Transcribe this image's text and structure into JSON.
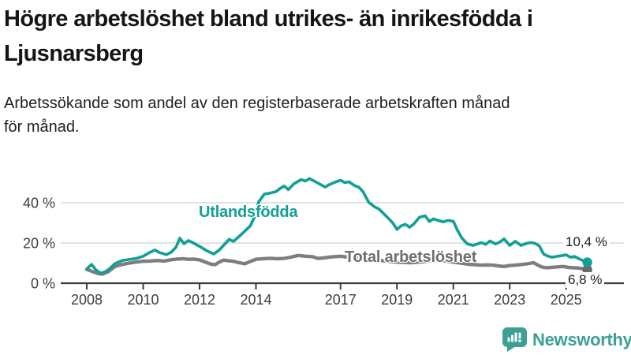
{
  "chart_data": {
    "type": "line",
    "title": "Högre arbetslöshet bland utrikes- än inrikesfödda i\nLjusnarsberg",
    "subtitle": "Arbetssökande som andel av den registerbaserade arbetskraften månad\nför månad.",
    "xlabel": "",
    "ylabel": "",
    "grid": "horizontal",
    "legend": "inline-labels",
    "x_axis": {
      "ticks": [
        2008,
        2010,
        2012,
        2014,
        2017,
        2019,
        2021,
        2023,
        2025
      ],
      "range": [
        2007.1,
        2027.0
      ]
    },
    "y_axis": {
      "unit": "%",
      "range": [
        0,
        58.5
      ],
      "ticks": [
        {
          "label": "0 %",
          "value": 0
        },
        {
          "label": "20 %",
          "value": 20
        },
        {
          "label": "40 %",
          "value": 40
        }
      ]
    },
    "series": [
      {
        "id": "utlandsfodda",
        "name": "Utlandsfödda",
        "color": "#11a094",
        "dot_color": "#11a094",
        "width": 3.6,
        "end_label": "10,4 %",
        "end_value": 10.4,
        "points": [
          [
            2008.0,
            7.0
          ],
          [
            2008.08,
            8.2
          ],
          [
            2008.17,
            9.3
          ],
          [
            2008.33,
            6.5
          ],
          [
            2008.5,
            5.0
          ],
          [
            2008.67,
            5.8
          ],
          [
            2008.83,
            7.5
          ],
          [
            2009.0,
            9.8
          ],
          [
            2009.25,
            11.2
          ],
          [
            2009.5,
            11.8
          ],
          [
            2009.75,
            12.3
          ],
          [
            2010.0,
            13.4
          ],
          [
            2010.25,
            15.4
          ],
          [
            2010.42,
            16.5
          ],
          [
            2010.58,
            15.2
          ],
          [
            2010.83,
            14.2
          ],
          [
            2011.0,
            15.5
          ],
          [
            2011.17,
            18.0
          ],
          [
            2011.3,
            22.4
          ],
          [
            2011.45,
            19.6
          ],
          [
            2011.6,
            21.2
          ],
          [
            2011.75,
            20.2
          ],
          [
            2012.0,
            18.3
          ],
          [
            2012.25,
            16.2
          ],
          [
            2012.5,
            14.5
          ],
          [
            2012.7,
            16.5
          ],
          [
            2012.85,
            18.8
          ],
          [
            2013.05,
            21.8
          ],
          [
            2013.2,
            20.8
          ],
          [
            2013.4,
            23.2
          ],
          [
            2013.6,
            25.8
          ],
          [
            2013.8,
            28.5
          ],
          [
            2013.95,
            33.0
          ],
          [
            2014.1,
            40.5
          ],
          [
            2014.3,
            44.3
          ],
          [
            2014.5,
            44.8
          ],
          [
            2014.7,
            45.5
          ],
          [
            2014.9,
            47.5
          ],
          [
            2015.0,
            48.3
          ],
          [
            2015.15,
            46.5
          ],
          [
            2015.35,
            49.5
          ],
          [
            2015.6,
            51.5
          ],
          [
            2015.75,
            50.8
          ],
          [
            2015.9,
            52.0
          ],
          [
            2016.1,
            50.5
          ],
          [
            2016.3,
            49.0
          ],
          [
            2016.45,
            47.8
          ],
          [
            2016.6,
            49.0
          ],
          [
            2016.8,
            50.2
          ],
          [
            2017.0,
            51.2
          ],
          [
            2017.15,
            50.0
          ],
          [
            2017.3,
            50.4
          ],
          [
            2017.5,
            48.5
          ],
          [
            2017.65,
            47.7
          ],
          [
            2017.8,
            45.5
          ],
          [
            2018.0,
            40.2
          ],
          [
            2018.2,
            38.0
          ],
          [
            2018.35,
            37.0
          ],
          [
            2018.5,
            35.0
          ],
          [
            2018.7,
            32.2
          ],
          [
            2018.85,
            30.0
          ],
          [
            2019.0,
            26.8
          ],
          [
            2019.15,
            28.5
          ],
          [
            2019.3,
            29.3
          ],
          [
            2019.45,
            27.8
          ],
          [
            2019.6,
            29.5
          ],
          [
            2019.8,
            32.8
          ],
          [
            2020.0,
            33.5
          ],
          [
            2020.15,
            30.7
          ],
          [
            2020.3,
            32.0
          ],
          [
            2020.5,
            31.0
          ],
          [
            2020.65,
            30.5
          ],
          [
            2020.8,
            31.2
          ],
          [
            2021.0,
            30.8
          ],
          [
            2021.15,
            26.2
          ],
          [
            2021.3,
            22.5
          ],
          [
            2021.5,
            19.5
          ],
          [
            2021.7,
            18.8
          ],
          [
            2021.85,
            19.5
          ],
          [
            2022.0,
            20.2
          ],
          [
            2022.15,
            19.3
          ],
          [
            2022.3,
            21.0
          ],
          [
            2022.5,
            19.5
          ],
          [
            2022.65,
            20.5
          ],
          [
            2022.8,
            22.0
          ],
          [
            2023.0,
            18.8
          ],
          [
            2023.2,
            20.8
          ],
          [
            2023.4,
            18.8
          ],
          [
            2023.6,
            19.8
          ],
          [
            2023.75,
            20.2
          ],
          [
            2023.9,
            19.8
          ],
          [
            2024.05,
            18.5
          ],
          [
            2024.2,
            14.5
          ],
          [
            2024.35,
            13.5
          ],
          [
            2024.5,
            12.9
          ],
          [
            2024.65,
            13.3
          ],
          [
            2024.8,
            13.6
          ],
          [
            2025.0,
            14.1
          ],
          [
            2025.15,
            12.9
          ],
          [
            2025.3,
            13.3
          ],
          [
            2025.45,
            12.2
          ],
          [
            2025.6,
            11.2
          ],
          [
            2025.75,
            10.4
          ]
        ]
      },
      {
        "id": "total",
        "name": "Total arbetslöshet",
        "color": "#7e7e7e",
        "dot_color": "#66696d",
        "width": 4.4,
        "end_label": "6,8 %",
        "end_value": 6.8,
        "points": [
          [
            2008.0,
            6.9
          ],
          [
            2008.2,
            5.8
          ],
          [
            2008.4,
            4.8
          ],
          [
            2008.55,
            4.5
          ],
          [
            2008.75,
            5.6
          ],
          [
            2009.0,
            8.3
          ],
          [
            2009.25,
            9.3
          ],
          [
            2009.5,
            10.0
          ],
          [
            2009.75,
            10.5
          ],
          [
            2010.0,
            10.9
          ],
          [
            2010.25,
            11.0
          ],
          [
            2010.5,
            11.3
          ],
          [
            2010.75,
            11.0
          ],
          [
            2011.0,
            11.7
          ],
          [
            2011.2,
            12.0
          ],
          [
            2011.4,
            12.2
          ],
          [
            2011.6,
            11.9
          ],
          [
            2011.8,
            12.0
          ],
          [
            2012.0,
            11.6
          ],
          [
            2012.2,
            10.5
          ],
          [
            2012.4,
            9.5
          ],
          [
            2012.55,
            9.2
          ],
          [
            2012.7,
            10.5
          ],
          [
            2012.85,
            11.5
          ],
          [
            2013.0,
            11.2
          ],
          [
            2013.2,
            10.9
          ],
          [
            2013.4,
            10.2
          ],
          [
            2013.6,
            9.7
          ],
          [
            2013.8,
            10.8
          ],
          [
            2014.0,
            11.9
          ],
          [
            2014.25,
            12.2
          ],
          [
            2014.5,
            12.4
          ],
          [
            2014.75,
            12.2
          ],
          [
            2015.0,
            12.3
          ],
          [
            2015.25,
            13.0
          ],
          [
            2015.5,
            13.8
          ],
          [
            2015.75,
            13.4
          ],
          [
            2016.0,
            13.2
          ],
          [
            2016.2,
            12.3
          ],
          [
            2016.4,
            12.6
          ],
          [
            2016.6,
            13.0
          ],
          [
            2016.8,
            13.2
          ],
          [
            2017.0,
            13.4
          ],
          [
            2017.25,
            13.0
          ],
          [
            2017.5,
            12.7
          ],
          [
            2017.75,
            12.3
          ],
          [
            2018.0,
            12.0
          ],
          [
            2018.25,
            11.6
          ],
          [
            2018.5,
            11.2
          ],
          [
            2018.75,
            10.8
          ],
          [
            2019.0,
            10.5
          ],
          [
            2019.25,
            10.3
          ],
          [
            2019.5,
            10.2
          ],
          [
            2019.75,
            10.5
          ],
          [
            2020.0,
            10.8
          ],
          [
            2020.25,
            11.3
          ],
          [
            2020.5,
            11.5
          ],
          [
            2020.75,
            11.0
          ],
          [
            2021.0,
            10.5
          ],
          [
            2021.25,
            10.0
          ],
          [
            2021.5,
            9.5
          ],
          [
            2021.75,
            9.2
          ],
          [
            2022.0,
            9.0
          ],
          [
            2022.2,
            9.1
          ],
          [
            2022.4,
            9.0
          ],
          [
            2022.6,
            8.6
          ],
          [
            2022.8,
            8.3
          ],
          [
            2023.0,
            8.8
          ],
          [
            2023.2,
            9.0
          ],
          [
            2023.4,
            9.3
          ],
          [
            2023.6,
            9.6
          ],
          [
            2023.85,
            10.2
          ],
          [
            2024.0,
            9.0
          ],
          [
            2024.15,
            8.0
          ],
          [
            2024.3,
            7.7
          ],
          [
            2024.5,
            7.9
          ],
          [
            2024.7,
            8.1
          ],
          [
            2024.9,
            8.3
          ],
          [
            2025.1,
            7.8
          ],
          [
            2025.25,
            7.7
          ],
          [
            2025.4,
            7.6
          ],
          [
            2025.55,
            7.3
          ],
          [
            2025.75,
            6.8
          ]
        ]
      }
    ],
    "colors": {
      "accent_teal": "#11a094",
      "line_gray": "#7e7e7e",
      "gridline": "#d9d9d9",
      "axis": "#3c3c3c",
      "text": "#151515"
    }
  },
  "footer": {
    "brand": "Newsworthy",
    "brand_color": "#3da094",
    "logo_icon": "bar-chart-speech-bubble-icon"
  }
}
